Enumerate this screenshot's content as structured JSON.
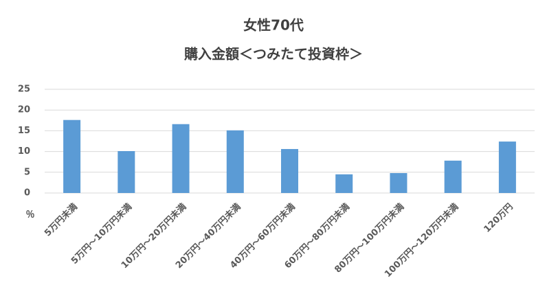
{
  "chart_data": {
    "type": "bar",
    "title": "女性70代",
    "subtitle": "購入金額＜つみたて投資枠＞",
    "y_label": "％",
    "categories": [
      "5万円未満",
      "5万円～10万円未満",
      "10万円～20万円未満",
      "20万円～40万円未満",
      "40万円～60万円未満",
      "60万円～80万円未満",
      "80万円～100万円未満",
      "100万円～120万円未満",
      "120万円"
    ],
    "values": [
      17.6,
      10.1,
      16.6,
      15.1,
      10.6,
      4.5,
      4.8,
      7.8,
      12.4
    ],
    "color": "#5b9bd5",
    "ylim": [
      0,
      25
    ],
    "yticks": [
      0,
      5,
      10,
      15,
      20,
      25
    ],
    "grid": true
  }
}
